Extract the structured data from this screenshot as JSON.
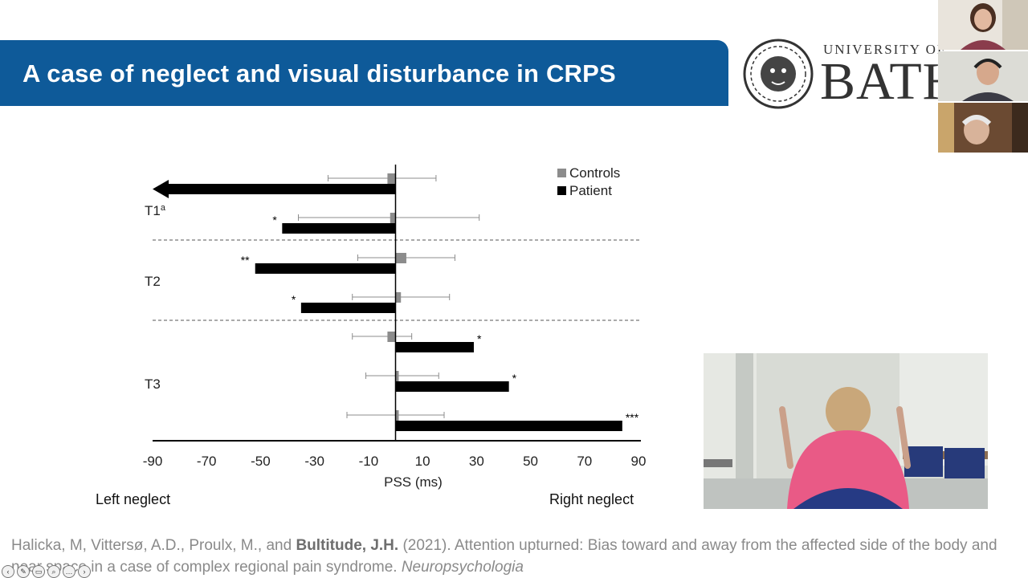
{
  "slide": {
    "title": "A case of neglect and visual disturbance in CRPS"
  },
  "logo": {
    "university_of": "UNIVERSITY OF",
    "bath": "BATH"
  },
  "chart_data": {
    "type": "bar",
    "orientation": "horizontal",
    "xlabel": "PSS (ms)",
    "xlim": [
      -90,
      90
    ],
    "xticks": [
      -90,
      -70,
      -50,
      -30,
      -10,
      10,
      30,
      50,
      70,
      90
    ],
    "legend": {
      "placement": "top-right",
      "entries": [
        {
          "name": "Controls",
          "color": "#8c8c8c"
        },
        {
          "name": "Patient",
          "color": "#000000"
        }
      ]
    },
    "groups": [
      {
        "label": "T1",
        "superscript": "a",
        "rows": [
          {
            "controls": -3,
            "controls_err": [
              -25,
              15
            ],
            "patient": -90,
            "patient_arrow": true,
            "sig": ""
          },
          {
            "controls": -2,
            "controls_err": [
              -36,
              31
            ],
            "patient": -42,
            "sig": "*"
          }
        ]
      },
      {
        "label": "T2",
        "superscript": "",
        "rows": [
          {
            "controls": 4,
            "controls_err": [
              -14,
              22
            ],
            "patient": -52,
            "sig": "**"
          },
          {
            "controls": 2,
            "controls_err": [
              -16,
              20
            ],
            "patient": -35,
            "sig": "*"
          }
        ]
      },
      {
        "label": "T3",
        "superscript": "",
        "rows": [
          {
            "controls": -3,
            "controls_err": [
              -16,
              6
            ],
            "patient": 29,
            "sig": "*"
          },
          {
            "controls": 1,
            "controls_err": [
              -11,
              16
            ],
            "patient": 42,
            "sig": "*"
          },
          {
            "controls": 0,
            "controls_err": [
              -18,
              18
            ],
            "patient": 84,
            "sig": "***"
          }
        ]
      }
    ],
    "side_labels": {
      "left": "Left neglect",
      "right": "Right neglect"
    }
  },
  "citation": {
    "authors_plain": "Halicka, M, Vittersø, A.D., Proulx, M., and ",
    "author_bold": "Bultitude, J.H.",
    "rest": " (2021). Attention upturned: Bias toward and away from the affected side of the body and near space in a case of complex regional pain syndrome. ",
    "journal": "Neuropsychologia"
  },
  "toolbar": {
    "buttons": [
      "prev-icon",
      "pen-icon",
      "captions-icon",
      "zoom-icon",
      "more-icon",
      "next-icon"
    ]
  }
}
